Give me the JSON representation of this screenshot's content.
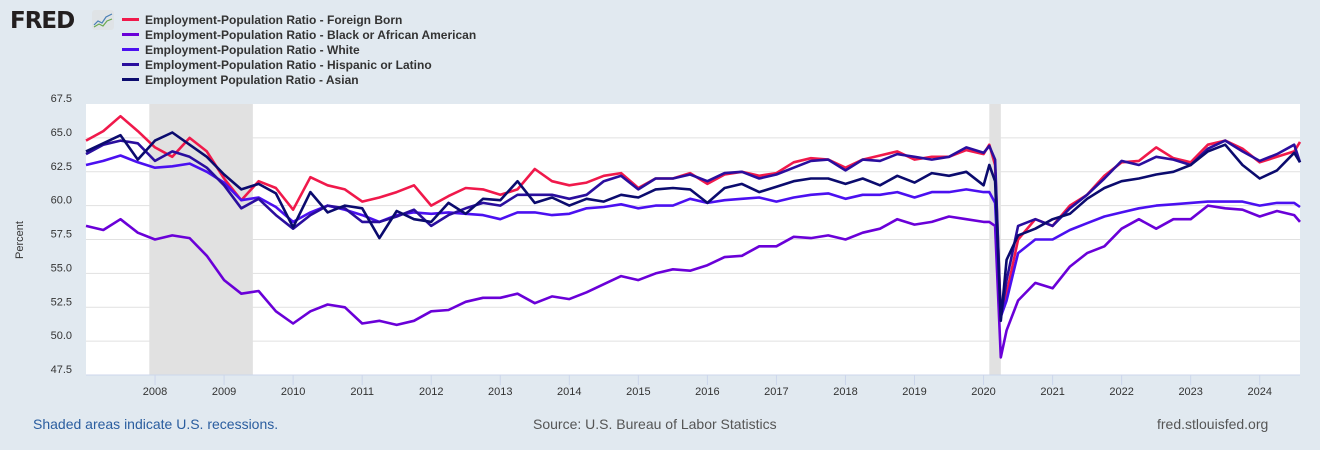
{
  "logo": {
    "text": "FRED"
  },
  "chart_data": {
    "type": "line",
    "ylabel": "Percent",
    "ylim": [
      47.5,
      67.5
    ],
    "yticks": [
      "67.5",
      "65.0",
      "62.5",
      "60.0",
      "57.5",
      "55.0",
      "52.5",
      "50.0",
      "47.5"
    ],
    "xlim": [
      "2007-01",
      "2024-08"
    ],
    "xticks": [
      "2008",
      "2009",
      "2010",
      "2011",
      "2012",
      "2013",
      "2014",
      "2015",
      "2016",
      "2017",
      "2018",
      "2019",
      "2020",
      "2021",
      "2022",
      "2023",
      "2024"
    ],
    "grid": true,
    "legend": "top-left",
    "recessions": [
      [
        "2007-12",
        "2009-06"
      ],
      [
        "2020-02",
        "2020-04"
      ]
    ],
    "x": [
      "2007-01",
      "2007-04",
      "2007-07",
      "2007-10",
      "2008-01",
      "2008-04",
      "2008-07",
      "2008-10",
      "2009-01",
      "2009-04",
      "2009-07",
      "2009-10",
      "2010-01",
      "2010-04",
      "2010-07",
      "2010-10",
      "2011-01",
      "2011-04",
      "2011-07",
      "2011-10",
      "2012-01",
      "2012-04",
      "2012-07",
      "2012-10",
      "2013-01",
      "2013-04",
      "2013-07",
      "2013-10",
      "2014-01",
      "2014-04",
      "2014-07",
      "2014-10",
      "2015-01",
      "2015-04",
      "2015-07",
      "2015-10",
      "2016-01",
      "2016-04",
      "2016-07",
      "2016-10",
      "2017-01",
      "2017-04",
      "2017-07",
      "2017-10",
      "2018-01",
      "2018-04",
      "2018-07",
      "2018-10",
      "2019-01",
      "2019-04",
      "2019-07",
      "2019-10",
      "2020-01",
      "2020-02",
      "2020-03",
      "2020-04",
      "2020-05",
      "2020-07",
      "2020-10",
      "2021-01",
      "2021-04",
      "2021-07",
      "2021-10",
      "2022-01",
      "2022-04",
      "2022-07",
      "2022-10",
      "2023-01",
      "2023-04",
      "2023-07",
      "2023-10",
      "2024-01",
      "2024-04",
      "2024-07",
      "2024-08"
    ],
    "series": [
      {
        "name": "Employment-Population Ratio - Foreign Born",
        "color": "#f0194b",
        "values": [
          64.8,
          65.5,
          66.6,
          65.5,
          64.3,
          63.6,
          65.0,
          64.0,
          62.0,
          60.4,
          61.8,
          61.3,
          59.7,
          62.1,
          61.5,
          61.2,
          60.3,
          60.6,
          61.0,
          61.5,
          60.0,
          60.7,
          61.3,
          61.2,
          60.8,
          61.2,
          62.7,
          61.8,
          61.5,
          61.7,
          62.2,
          62.4,
          61.3,
          62.0,
          62.0,
          62.4,
          61.6,
          62.3,
          62.5,
          62.2,
          62.4,
          63.2,
          63.5,
          63.4,
          62.8,
          63.4,
          63.7,
          64.0,
          63.4,
          63.6,
          63.6,
          64.1,
          63.8,
          64.5,
          63.0,
          51.8,
          53.5,
          57.5,
          59.0,
          58.5,
          60.0,
          60.8,
          62.2,
          63.2,
          63.3,
          64.3,
          63.5,
          63.2,
          64.5,
          64.8,
          64.2,
          63.2,
          63.6,
          64.0,
          64.7
        ]
      },
      {
        "name": "Employment-Population Ratio - Black or African American",
        "color": "#6a00d8",
        "values": [
          58.5,
          58.2,
          59.0,
          58.0,
          57.5,
          57.8,
          57.6,
          56.3,
          54.5,
          53.5,
          53.7,
          52.2,
          51.3,
          52.2,
          52.7,
          52.5,
          51.3,
          51.5,
          51.2,
          51.5,
          52.2,
          52.3,
          52.9,
          53.2,
          53.2,
          53.5,
          52.8,
          53.3,
          53.1,
          53.6,
          54.2,
          54.8,
          54.5,
          55.0,
          55.3,
          55.2,
          55.6,
          56.2,
          56.3,
          57.0,
          57.0,
          57.7,
          57.6,
          57.8,
          57.5,
          58.0,
          58.3,
          59.0,
          58.6,
          58.8,
          59.2,
          59.0,
          58.8,
          58.8,
          58.5,
          48.8,
          50.8,
          53.0,
          54.3,
          53.9,
          55.5,
          56.5,
          57.0,
          58.3,
          59.0,
          58.3,
          59.0,
          59.0,
          60.0,
          59.8,
          59.7,
          59.2,
          59.6,
          59.3,
          58.8
        ]
      },
      {
        "name": "Employment-Population Ratio - White",
        "color": "#4b10f0",
        "values": [
          63.0,
          63.3,
          63.7,
          63.2,
          62.8,
          62.9,
          63.1,
          62.5,
          61.7,
          60.4,
          60.6,
          59.9,
          58.8,
          59.5,
          60.0,
          59.7,
          59.3,
          58.8,
          59.3,
          59.5,
          59.4,
          59.5,
          59.4,
          59.3,
          59.0,
          59.5,
          59.5,
          59.3,
          59.4,
          59.8,
          59.9,
          60.1,
          59.8,
          60.0,
          60.0,
          60.5,
          60.2,
          60.4,
          60.5,
          60.6,
          60.3,
          60.6,
          60.8,
          60.9,
          60.5,
          60.8,
          60.8,
          61.0,
          60.6,
          61.0,
          61.0,
          61.2,
          61.0,
          61.0,
          60.2,
          51.8,
          53.0,
          56.5,
          57.5,
          57.5,
          58.2,
          58.7,
          59.2,
          59.5,
          59.8,
          60.0,
          60.1,
          60.2,
          60.3,
          60.3,
          60.3,
          60.0,
          60.2,
          60.2,
          59.9
        ]
      },
      {
        "name": "Employment-Population Ratio - Hispanic or Latino",
        "color": "#2a0e9e",
        "values": [
          63.8,
          64.5,
          64.8,
          64.6,
          63.3,
          64.0,
          63.6,
          62.8,
          61.5,
          59.8,
          60.5,
          59.3,
          58.3,
          59.3,
          60.0,
          59.8,
          58.8,
          58.8,
          59.2,
          59.7,
          58.5,
          59.3,
          59.8,
          60.2,
          60.0,
          60.8,
          60.8,
          60.8,
          60.5,
          60.8,
          61.8,
          62.2,
          61.2,
          62.0,
          62.0,
          62.3,
          61.8,
          62.4,
          62.5,
          62.0,
          62.3,
          62.8,
          63.3,
          63.4,
          62.6,
          63.4,
          63.3,
          63.8,
          63.6,
          63.4,
          63.6,
          64.3,
          63.9,
          64.4,
          63.4,
          51.7,
          54.5,
          58.5,
          59.0,
          58.5,
          59.8,
          60.8,
          62.0,
          63.3,
          63.0,
          63.6,
          63.4,
          63.0,
          64.2,
          64.8,
          64.0,
          63.3,
          63.8,
          64.5,
          63.2
        ]
      },
      {
        "name": "Employment Population Ratio - Asian",
        "color": "#0b0b6e",
        "values": [
          64.0,
          64.6,
          65.2,
          63.4,
          64.8,
          65.4,
          64.5,
          63.6,
          62.3,
          61.2,
          61.6,
          60.9,
          58.4,
          61.0,
          59.5,
          60.0,
          59.8,
          57.6,
          59.6,
          59.0,
          58.8,
          60.2,
          59.4,
          60.5,
          60.4,
          61.8,
          60.2,
          60.6,
          60.0,
          60.5,
          60.3,
          60.8,
          60.6,
          61.2,
          61.3,
          61.2,
          60.2,
          61.3,
          61.6,
          61.0,
          61.4,
          61.8,
          62.0,
          62.0,
          61.6,
          62.0,
          61.5,
          62.2,
          61.7,
          62.4,
          62.2,
          62.5,
          61.5,
          63.0,
          61.8,
          51.5,
          56.0,
          57.8,
          58.3,
          59.0,
          59.4,
          60.5,
          61.3,
          61.8,
          62.0,
          62.3,
          62.5,
          63.0,
          64.0,
          64.5,
          63.0,
          62.0,
          62.6,
          63.9,
          63.2
        ]
      }
    ]
  },
  "footer": {
    "recessions_note": "Shaded areas indicate U.S. recessions.",
    "source": "Source: U.S. Bureau of Labor Statistics",
    "url": "fred.stlouisfed.org"
  }
}
